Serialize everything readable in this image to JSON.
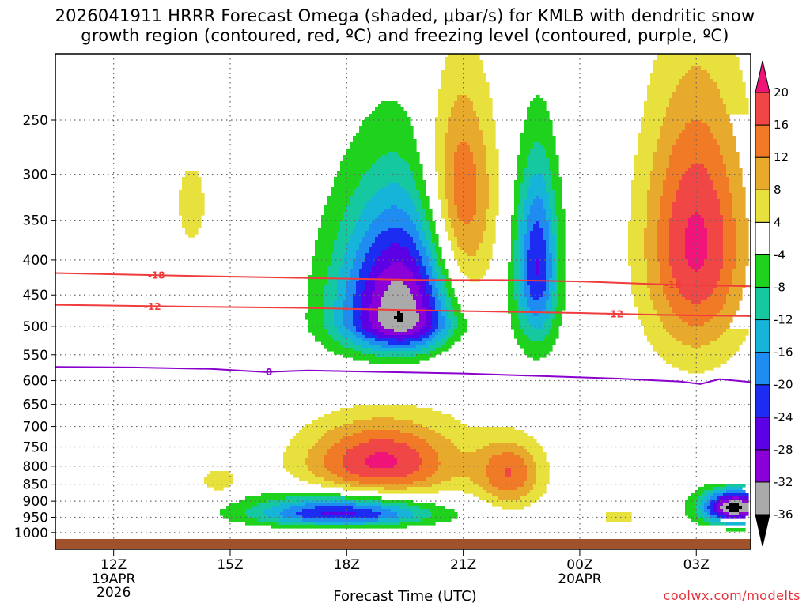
{
  "title_line1": "2026041911 HRRR Forecast Omega (shaded, μbar/s) for KMLB with dendritic snow",
  "title_line2": "growth region (contoured, red, ºC) and freezing level (contoured, purple, ºC)",
  "xlabel": "Forecast Time (UTC)",
  "credit": "coolwx.com/modelts",
  "chart_data": {
    "type": "heatmap",
    "x_unit": "forecast hour",
    "x_range": [
      10.5,
      28.4
    ],
    "y_unit": "hPa",
    "y_scale": "log-pressure (inverted)",
    "y_range": [
      1022,
      200
    ],
    "x_ticks": [
      {
        "h": 12,
        "label": "12Z",
        "sub1": "19APR",
        "sub2": "2026"
      },
      {
        "h": 15,
        "label": "15Z",
        "sub1": "",
        "sub2": ""
      },
      {
        "h": 18,
        "label": "18Z",
        "sub1": "",
        "sub2": ""
      },
      {
        "h": 21,
        "label": "21Z",
        "sub1": "",
        "sub2": ""
      },
      {
        "h": 24,
        "label": "00Z",
        "sub1": "20APR",
        "sub2": ""
      },
      {
        "h": 27,
        "label": "03Z",
        "sub1": "",
        "sub2": ""
      }
    ],
    "y_ticks": [
      250,
      300,
      350,
      400,
      450,
      500,
      550,
      600,
      650,
      700,
      750,
      800,
      850,
      900,
      950,
      1000
    ],
    "colorbar": {
      "levels": [
        -36,
        -32,
        -28,
        -24,
        -20,
        -16,
        -12,
        -8,
        -4,
        4,
        8,
        12,
        16,
        20
      ],
      "colors": [
        "#000000",
        "#aaaaaa",
        "#8a00d8",
        "#5c00e6",
        "#1c2cf0",
        "#1e8cf0",
        "#16b4d8",
        "#16c8a0",
        "#1ed21e",
        "#ffffff",
        "#e8e03c",
        "#e8aa2c",
        "#f07a26",
        "#f04646",
        "#f0147a"
      ]
    },
    "omega_features": [
      {
        "name": "upper-ascent-core",
        "cx": 19.45,
        "cp": 488,
        "rx": 2.1,
        "rp_up": 220,
        "rp_down": 70,
        "vmin": -37
      },
      {
        "name": "upper-descent-plume",
        "cx": 20.9,
        "cp": 340,
        "rx": 1.15,
        "rp_up": 160,
        "rp_down": 230,
        "vmax": 21
      },
      {
        "name": "ascent-column-east",
        "cx": 22.9,
        "cp": 410,
        "rx": 0.7,
        "rp_up": 170,
        "rp_down": 140,
        "vmin": -24
      },
      {
        "name": "descent-plume-late",
        "cx": 27.0,
        "cp": 380,
        "rx": 1.7,
        "rp_up": 220,
        "rp_down": 200,
        "vmax": 21
      },
      {
        "name": "low-descent-18z",
        "cx": 18.9,
        "cp": 790,
        "rx": 2.5,
        "rp_up": 140,
        "rp_down": 130,
        "vmax": 21
      },
      {
        "name": "low-ascent-18z",
        "cx": 17.9,
        "cp": 940,
        "rx": 2.9,
        "rp_up": 80,
        "rp_down": 45,
        "vmin": -27
      },
      {
        "name": "low-descent-22z",
        "cx": 22.2,
        "cp": 820,
        "rx": 1.1,
        "rp_up": 120,
        "rp_down": 120,
        "vmax": 15
      },
      {
        "name": "low-ascent-04z",
        "cx": 28.0,
        "cp": 920,
        "rx": 1.1,
        "rp_up": 70,
        "rp_down": 60,
        "vmin": -38
      },
      {
        "name": "small-descent-1430",
        "cx": 14.7,
        "cp": 840,
        "rx": 0.6,
        "rp_up": 50,
        "rp_down": 50,
        "vmax": 7
      },
      {
        "name": "small-descent-0030",
        "cx": 25.0,
        "cp": 950,
        "rx": 0.6,
        "rp_up": 35,
        "rp_down": 30,
        "vmax": 7
      },
      {
        "name": "upper-descent-13z",
        "cx": 14.0,
        "cp": 330,
        "rx": 0.6,
        "rp_up": 70,
        "rp_down": 80,
        "vmax": 6
      }
    ],
    "contours": [
      {
        "label": "-18",
        "color": "#f03c3c",
        "points": [
          [
            10.5,
            418
          ],
          [
            14,
            422
          ],
          [
            17,
            425
          ],
          [
            20,
            428
          ],
          [
            22,
            428
          ],
          [
            24,
            430
          ],
          [
            26,
            434
          ],
          [
            28.4,
            437
          ]
        ],
        "label_h": [
          13.1,
          26.4
        ]
      },
      {
        "label": "-12",
        "color": "#f03c3c",
        "points": [
          [
            10.5,
            465
          ],
          [
            14,
            468
          ],
          [
            17,
            470
          ],
          [
            20,
            474
          ],
          [
            22,
            476
          ],
          [
            24,
            478
          ],
          [
            26,
            481
          ],
          [
            28.4,
            483
          ]
        ],
        "label_h": [
          13.0,
          24.9
        ]
      },
      {
        "label": "0",
        "color": "#8a00cc",
        "points": [
          [
            10.5,
            573
          ],
          [
            12.5,
            574
          ],
          [
            14.5,
            577
          ],
          [
            15.9,
            583
          ],
          [
            17,
            580
          ],
          [
            19,
            583
          ],
          [
            21,
            586
          ],
          [
            23,
            591
          ],
          [
            25,
            596
          ],
          [
            26.6,
            602
          ],
          [
            27.1,
            607
          ],
          [
            27.6,
            597
          ],
          [
            28.4,
            603
          ]
        ],
        "label_h": [
          16.0
        ]
      }
    ]
  }
}
